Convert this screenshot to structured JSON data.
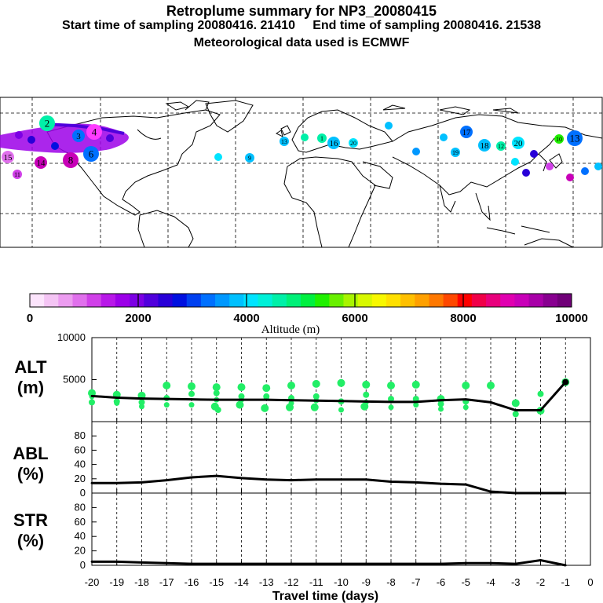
{
  "header": {
    "title": "Retroplume summary for NP3_20080415",
    "start_label": "Start time of sampling 20080416. 21410",
    "end_label": "End time of sampling 20080416. 21538",
    "met_label": "Meteorological data used is ECMWF"
  },
  "colors": {
    "altitude_scale": [
      "#fce4fc",
      "#f4c4f4",
      "#ec9cf0",
      "#e070ec",
      "#d040e8",
      "#b818e8",
      "#9c00e8",
      "#7c00e4",
      "#5000dc",
      "#2800d8",
      "#0010e0",
      "#0040f0",
      "#0070ff",
      "#0098ff",
      "#00c0ff",
      "#00e4ff",
      "#00f0d8",
      "#00f0a8",
      "#00f078",
      "#00f040",
      "#20f000",
      "#68f000",
      "#a8f400",
      "#d8f800",
      "#f8f800",
      "#ffe000",
      "#ffc000",
      "#ffa000",
      "#ff7800",
      "#ff4800",
      "#ff0000",
      "#f00048",
      "#e8007c",
      "#e000b0",
      "#c800b8",
      "#a800a8",
      "#880090",
      "#700078"
    ],
    "scatter": "#22ee66",
    "line": "#000000"
  },
  "colorbar": {
    "tick_labels": [
      "0",
      "2000",
      "4000",
      "6000",
      "8000",
      "10000"
    ],
    "label": "Altitude (m)"
  },
  "map": {
    "plume_points": [
      {
        "lbl": "4",
        "c": "#ff3cff",
        "s": "big"
      },
      {
        "lbl": "2",
        "c": "#00f0a8",
        "s": "big"
      },
      {
        "lbl": "3",
        "c": "#0070ff",
        "s": "mid"
      },
      {
        "lbl": "14",
        "c": "#c800b8",
        "s": "mid"
      },
      {
        "lbl": "8",
        "c": "#c800b8",
        "s": "big"
      },
      {
        "lbl": "6",
        "c": "#0070ff",
        "s": "big"
      },
      {
        "lbl": "15",
        "c": "#e070ec",
        "s": "mid"
      },
      {
        "lbl": "11",
        "c": "#d040e8",
        "s": "sm"
      },
      {
        "lbl": "13",
        "c": "#00c0ff",
        "s": "sm"
      },
      {
        "lbl": "16",
        "c": "#00c0ff",
        "s": "mid"
      },
      {
        "lbl": "17",
        "c": "#0070ff",
        "s": "mid"
      },
      {
        "lbl": "18",
        "c": "#00c0ff",
        "s": "mid"
      },
      {
        "lbl": "20",
        "c": "#00e4ff",
        "s": "mid"
      },
      {
        "lbl": "10",
        "c": "#20f000",
        "s": "sm"
      },
      {
        "lbl": "13",
        "c": "#0070ff",
        "s": "big"
      },
      {
        "lbl": "12",
        "c": "#00f0a8",
        "s": "sm"
      },
      {
        "lbl": "19",
        "c": "#00c0ff",
        "s": "sm"
      },
      {
        "lbl": "20",
        "c": "#00e4ff",
        "s": "sm"
      },
      {
        "lbl": "1",
        "c": "#00f0a8",
        "s": "sm"
      },
      {
        "lbl": "9",
        "c": "#00c0ff",
        "s": "sm"
      }
    ]
  },
  "chart_data": [
    {
      "type": "line",
      "title": "ALT (m)",
      "label_main": "ALT",
      "label_unit": "(m)",
      "x": [
        -20,
        -19,
        -18,
        -17,
        -16,
        -15,
        -14,
        -13,
        -12,
        -11,
        -10,
        -9,
        -8,
        -7,
        -6,
        -5,
        -4,
        -3,
        -2,
        -1
      ],
      "values": [
        3050,
        2850,
        2750,
        2700,
        2650,
        2600,
        2600,
        2600,
        2550,
        2500,
        2450,
        2400,
        2350,
        2350,
        2550,
        2650,
        2300,
        1350,
        1350,
        4700
      ],
      "scatter_y": [
        [
          3400,
          2300,
          3000
        ],
        [
          3200,
          2400,
          2200
        ],
        [
          3100,
          2300,
          1800
        ],
        [
          4300,
          2800,
          2000
        ],
        [
          4200,
          3300,
          2000
        ],
        [
          4100,
          3400,
          2600,
          1800,
          1400
        ],
        [
          4100,
          3000,
          2600,
          2000
        ],
        [
          4000,
          3000,
          2800,
          1600
        ],
        [
          4300,
          2800,
          2200,
          1700
        ],
        [
          4500,
          3000,
          2500,
          1700
        ],
        [
          4600,
          2400,
          1400
        ],
        [
          4400,
          3200,
          2300,
          1800
        ],
        [
          4300,
          2700,
          1700
        ],
        [
          4400,
          2700,
          2000
        ],
        [
          2700,
          2100,
          1500
        ],
        [
          4300,
          2400,
          1700
        ],
        [
          4300
        ],
        [
          2200,
          900
        ],
        [
          1300,
          3300
        ],
        [
          4700
        ]
      ],
      "ylim": [
        0,
        10000
      ],
      "ytick_labels": [
        "5000",
        "10000"
      ]
    },
    {
      "type": "line",
      "title": "ABL (%)",
      "label_main": "ABL",
      "label_unit": "(%)",
      "x": [
        -20,
        -19,
        -18,
        -17,
        -16,
        -15,
        -14,
        -13,
        -12,
        -11,
        -10,
        -9,
        -8,
        -7,
        -6,
        -5,
        -4,
        -3,
        -2,
        -1
      ],
      "values": [
        14,
        14,
        15,
        18,
        22,
        24,
        21,
        19,
        18,
        19,
        19,
        19,
        16,
        15,
        13,
        12,
        2,
        0,
        0,
        0
      ],
      "ylim": [
        0,
        100
      ],
      "ytick_labels": [
        "0",
        "20",
        "40",
        "60",
        "80"
      ]
    },
    {
      "type": "line",
      "title": "STR (%)",
      "label_main": "STR",
      "label_unit": "(%)",
      "x": [
        -20,
        -19,
        -18,
        -17,
        -16,
        -15,
        -14,
        -13,
        -12,
        -11,
        -10,
        -9,
        -8,
        -7,
        -6,
        -5,
        -4,
        -3,
        -2,
        -1
      ],
      "values": [
        5,
        5,
        4,
        3,
        2,
        2,
        2,
        2,
        2,
        2,
        2,
        2,
        2,
        2,
        2,
        3,
        3,
        2,
        7,
        0
      ],
      "ylim": [
        0,
        100
      ],
      "ytick_labels": [
        "0",
        "20",
        "40",
        "60",
        "80"
      ]
    }
  ],
  "xaxis": {
    "tick_labels": [
      "-20",
      "-19",
      "-18",
      "-17",
      "-16",
      "-15",
      "-14",
      "-13",
      "-12",
      "-11",
      "-10",
      "-9",
      "-8",
      "-7",
      "-6",
      "-5",
      "-4",
      "-3",
      "-2",
      "-1",
      "0"
    ],
    "label": "Travel time (days)"
  }
}
